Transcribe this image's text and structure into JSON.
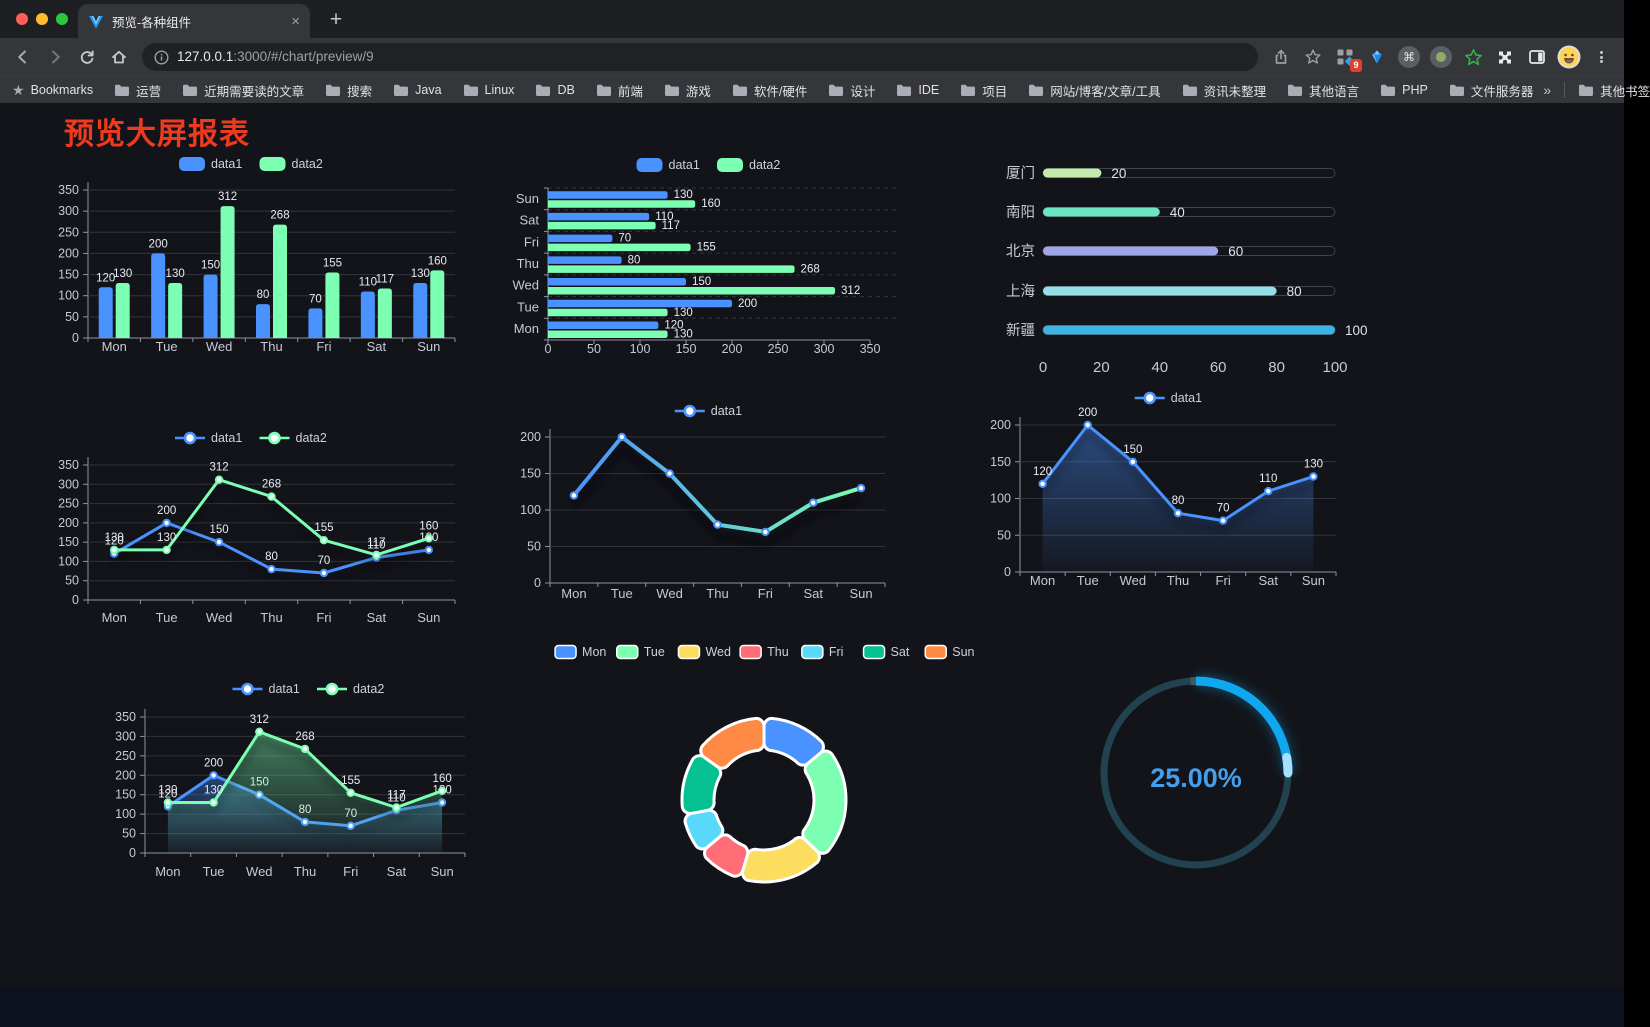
{
  "browser": {
    "tab_title": "预览-各种组件",
    "url_host": "127.0.0.1",
    "url_path": ":3000/#/chart/preview/9",
    "extension_badge": "9",
    "bookmarks": [
      "Bookmarks",
      "运营",
      "近期需要读的文章",
      "搜索",
      "Java",
      "Linux",
      "DB",
      "前端",
      "游戏",
      "软件/硬件",
      "设计",
      "IDE",
      "项目",
      "网站/博客/文章/工具",
      "资讯未整理",
      "其他语言",
      "PHP",
      "文件服务器"
    ],
    "bookmarks_overflow": "»",
    "other_bookmarks": "其他书签"
  },
  "page": {
    "title": "预览大屏报表",
    "title_color": "#ee3b20"
  },
  "theme": {
    "axis_label": "#c6cad4",
    "axis_line": "#8f93a3",
    "grid": "#32343d",
    "legend_text": "#cdd1da",
    "value_label": "#e9ebf2",
    "blue": "#4992ff",
    "green": "#7cffb2"
  },
  "chart_data": [
    {
      "id": "bar-grouped",
      "type": "bar",
      "categories": [
        "Mon",
        "Tue",
        "Wed",
        "Thu",
        "Fri",
        "Sat",
        "Sun"
      ],
      "series": [
        {
          "name": "data1",
          "color": "#4992ff",
          "values": [
            120,
            200,
            150,
            80,
            70,
            110,
            130
          ]
        },
        {
          "name": "data2",
          "color": "#7cffb2",
          "values": [
            130,
            130,
            312,
            268,
            155,
            117,
            160
          ]
        }
      ],
      "ylim": [
        0,
        350
      ],
      "ytick_step": 50,
      "legend_position": "top",
      "grid": true
    },
    {
      "id": "bar-horizontal",
      "type": "hbar",
      "categories_top_to_bottom": [
        "Sun",
        "Sat",
        "Fri",
        "Thu",
        "Wed",
        "Tue",
        "Mon"
      ],
      "series": [
        {
          "name": "data1",
          "color": "#4992ff",
          "values": [
            130,
            110,
            70,
            80,
            150,
            200,
            120
          ]
        },
        {
          "name": "data2",
          "color": "#7cffb2",
          "values": [
            160,
            117,
            155,
            268,
            312,
            130,
            130
          ]
        }
      ],
      "xlim": [
        0,
        350
      ],
      "xtick_step": 50,
      "legend_position": "top",
      "grid": true
    },
    {
      "id": "city-progress",
      "type": "progress",
      "items": [
        {
          "label": "厦门",
          "value": 20,
          "color": "#c4ebad"
        },
        {
          "label": "南阳",
          "value": 40,
          "color": "#6be6c1"
        },
        {
          "label": "北京",
          "value": 60,
          "color": "#a0a7e6"
        },
        {
          "label": "上海",
          "value": 80,
          "color": "#96dee8"
        },
        {
          "label": "新疆",
          "value": 100,
          "color": "#3fb1e3"
        }
      ],
      "ticks": [
        0,
        20,
        40,
        60,
        80,
        100
      ],
      "max": 100
    },
    {
      "id": "line-two-series",
      "type": "line",
      "categories": [
        "Mon",
        "Tue",
        "Wed",
        "Thu",
        "Fri",
        "Sat",
        "Sun"
      ],
      "series": [
        {
          "name": "data1",
          "color": "#4992ff",
          "show_labels": true,
          "values": [
            120,
            200,
            150,
            80,
            70,
            110,
            130
          ]
        },
        {
          "name": "data2",
          "color": "#7cffb2",
          "show_labels": true,
          "values": [
            130,
            130,
            312,
            268,
            155,
            117,
            160
          ]
        }
      ],
      "ylim": [
        0,
        350
      ],
      "ytick_step": 50,
      "legend_position": "top",
      "grid": true
    },
    {
      "id": "line-gradient",
      "type": "line",
      "categories": [
        "Mon",
        "Tue",
        "Wed",
        "Thu",
        "Fri",
        "Sat",
        "Sun"
      ],
      "series": [
        {
          "name": "data1",
          "color": "#4992ff",
          "gradient": [
            "#4992ff",
            "#7cffb2"
          ],
          "width": 4,
          "big_shadow": true,
          "values": [
            120,
            200,
            150,
            80,
            70,
            110,
            130
          ]
        }
      ],
      "ylim": [
        0,
        200
      ],
      "ytick_step": 50,
      "legend_position": "top",
      "grid": true
    },
    {
      "id": "area-single",
      "type": "line",
      "categories": [
        "Mon",
        "Tue",
        "Wed",
        "Thu",
        "Fri",
        "Sat",
        "Sun"
      ],
      "series": [
        {
          "name": "data1",
          "color": "#4992ff",
          "area": true,
          "show_labels": true,
          "values": [
            120,
            200,
            150,
            80,
            70,
            110,
            130
          ]
        }
      ],
      "ylim": [
        0,
        200
      ],
      "ytick_step": 50,
      "legend_position": "top",
      "grid": true
    },
    {
      "id": "area-two-series",
      "type": "line",
      "categories": [
        "Mon",
        "Tue",
        "Wed",
        "Thu",
        "Fri",
        "Sat",
        "Sun"
      ],
      "series": [
        {
          "name": "data1",
          "color": "#4992ff",
          "area": true,
          "show_labels": true,
          "values": [
            120,
            200,
            150,
            80,
            70,
            110,
            130
          ]
        },
        {
          "name": "data2",
          "color": "#7cffb2",
          "area": true,
          "show_labels": true,
          "values": [
            130,
            130,
            312,
            268,
            155,
            117,
            160
          ]
        }
      ],
      "ylim": [
        0,
        350
      ],
      "ytick_step": 50,
      "legend_position": "top",
      "grid": true
    },
    {
      "id": "donut-week",
      "type": "donut",
      "items": [
        {
          "label": "Mon",
          "value": 120,
          "color": "#4992ff"
        },
        {
          "label": "Tue",
          "value": 200,
          "color": "#7cffb2"
        },
        {
          "label": "Wed",
          "value": 150,
          "color": "#fddd60"
        },
        {
          "label": "Thu",
          "value": 80,
          "color": "#ff6e76"
        },
        {
          "label": "Fri",
          "value": 70,
          "color": "#58d9f9"
        },
        {
          "label": "Sat",
          "value": 110,
          "color": "#05c091"
        },
        {
          "label": "Sun",
          "value": 130,
          "color": "#ff8a45"
        }
      ],
      "border_color": "#ffffff",
      "legend_position": "top"
    },
    {
      "id": "gauge-percent",
      "type": "gauge",
      "value": 25,
      "max": 100,
      "text": "25.00%",
      "color": "#0fa8f0",
      "cap_color": "#a5e0ff",
      "track_color": "#21424e",
      "text_color": "#449fee"
    }
  ]
}
